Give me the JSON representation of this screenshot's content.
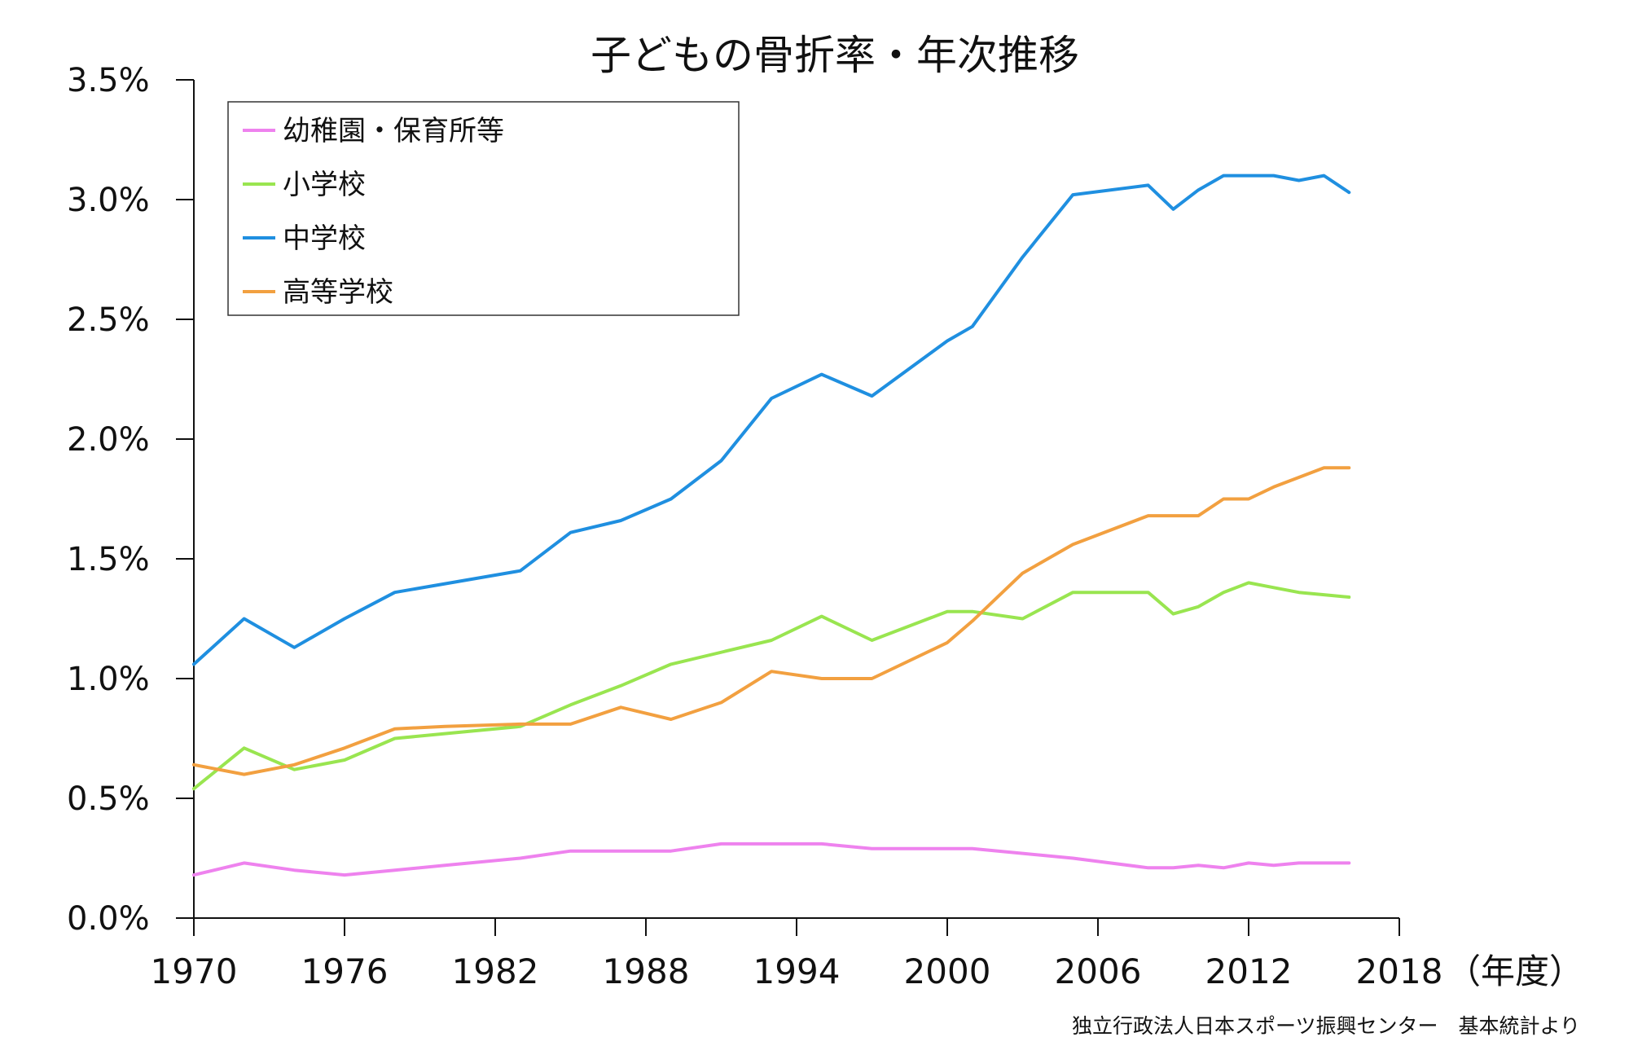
{
  "chart_data": {
    "type": "line",
    "title": "子どもの骨折率・年次推移",
    "xlabel": "（年度）",
    "ylabel": "",
    "xlim": [
      1970,
      2018
    ],
    "ylim": [
      0,
      3.5
    ],
    "x_ticks": [
      "1970",
      "1976",
      "1982",
      "1988",
      "1994",
      "2000",
      "2006",
      "2012",
      "2018"
    ],
    "y_ticks": [
      "0.0%",
      "0.5%",
      "1.0%",
      "1.5%",
      "2.0%",
      "2.5%",
      "3.0%",
      "3.5%"
    ],
    "grid": false,
    "legend_position": "top-left",
    "source": "独立行政法人日本スポーツ振興センター　基本統計より",
    "series": [
      {
        "name": "幼稚園・保育所等",
        "color": "#ee82ee",
        "x": [
          1970,
          1972,
          1974,
          1976,
          1978,
          1980,
          1983,
          1985,
          1987,
          1989,
          1991,
          1993,
          1995,
          1997,
          1999,
          2001,
          2003,
          2005,
          2008,
          2009,
          2010,
          2011,
          2012,
          2013,
          2014,
          2015,
          2016
        ],
        "y": [
          0.18,
          0.23,
          0.2,
          0.18,
          0.2,
          0.22,
          0.25,
          0.28,
          0.28,
          0.28,
          0.31,
          0.31,
          0.31,
          0.29,
          0.29,
          0.29,
          0.27,
          0.25,
          0.21,
          0.21,
          0.22,
          0.21,
          0.23,
          0.22,
          0.23,
          0.23,
          0.23
        ]
      },
      {
        "name": "小学校",
        "color": "#99e550",
        "x": [
          1970,
          1972,
          1974,
          1976,
          1978,
          1983,
          1985,
          1987,
          1989,
          1993,
          1995,
          1997,
          2000,
          2001,
          2003,
          2005,
          2008,
          2009,
          2010,
          2011,
          2012,
          2013,
          2014,
          2015,
          2016
        ],
        "y": [
          0.54,
          0.71,
          0.62,
          0.66,
          0.75,
          0.8,
          0.89,
          0.97,
          1.06,
          1.16,
          1.26,
          1.16,
          1.28,
          1.28,
          1.25,
          1.36,
          1.36,
          1.27,
          1.3,
          1.36,
          1.4,
          1.38,
          1.36,
          1.35,
          1.34
        ]
      },
      {
        "name": "中学校",
        "color": "#1f8fe0",
        "x": [
          1970,
          1972,
          1974,
          1976,
          1978,
          1983,
          1985,
          1987,
          1989,
          1991,
          1993,
          1995,
          1997,
          2000,
          2001,
          2003,
          2005,
          2008,
          2009,
          2010,
          2011,
          2012,
          2013,
          2014,
          2015,
          2016
        ],
        "y": [
          1.06,
          1.25,
          1.13,
          1.25,
          1.36,
          1.45,
          1.61,
          1.66,
          1.75,
          1.91,
          2.17,
          2.27,
          2.18,
          2.41,
          2.47,
          2.76,
          3.02,
          3.06,
          2.96,
          3.04,
          3.1,
          3.1,
          3.1,
          3.08,
          3.1,
          3.03
        ]
      },
      {
        "name": "高等学校",
        "color": "#f2a040",
        "x": [
          1970,
          1972,
          1974,
          1976,
          1978,
          1980,
          1983,
          1985,
          1987,
          1989,
          1991,
          1993,
          1995,
          1997,
          2000,
          2001,
          2003,
          2005,
          2008,
          2009,
          2010,
          2011,
          2012,
          2013,
          2014,
          2015,
          2016
        ],
        "y": [
          0.64,
          0.6,
          0.64,
          0.71,
          0.79,
          0.8,
          0.81,
          0.81,
          0.88,
          0.83,
          0.9,
          1.03,
          1.0,
          1.0,
          1.15,
          1.24,
          1.44,
          1.56,
          1.68,
          1.68,
          1.68,
          1.75,
          1.75,
          1.8,
          1.84,
          1.88,
          1.88
        ]
      }
    ]
  }
}
